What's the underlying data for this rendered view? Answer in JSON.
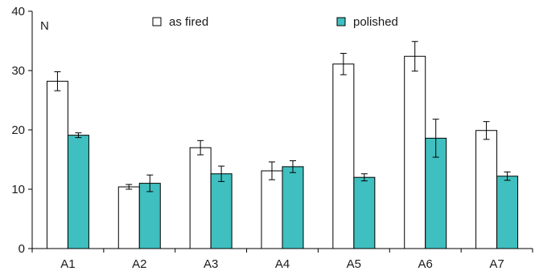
{
  "chart_data": {
    "type": "bar",
    "ylabel": "N",
    "ylim": [
      0,
      40
    ],
    "yticks": [
      0,
      10,
      20,
      30,
      40
    ],
    "grid": false,
    "legend_position": "top",
    "categories": [
      "A1",
      "A2",
      "A3",
      "A4",
      "A5",
      "A6",
      "A7"
    ],
    "series": [
      {
        "name": "as fired",
        "color": "#ffffff",
        "values": [
          28.2,
          10.4,
          17.0,
          13.1,
          31.1,
          32.4,
          19.9
        ],
        "errors": [
          1.6,
          0.4,
          1.2,
          1.5,
          1.8,
          2.5,
          1.5
        ]
      },
      {
        "name": "polished",
        "color": "#3fbfbf",
        "values": [
          19.1,
          11.0,
          12.6,
          13.8,
          12.0,
          18.6,
          12.2
        ],
        "errors": [
          0.4,
          1.4,
          1.3,
          1.0,
          0.6,
          3.2,
          0.7
        ]
      }
    ]
  }
}
